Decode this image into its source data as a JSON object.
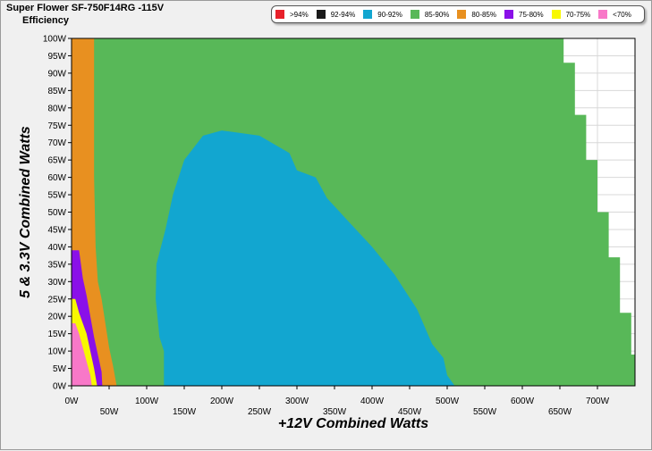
{
  "header": {
    "title": "Super Flower SF-750F14RG -115V",
    "subtitle": "Efficiency"
  },
  "legend": [
    {
      "label": ">94%",
      "color": "#e8202a"
    },
    {
      "label": "92-94%",
      "color": "#1a1a1a"
    },
    {
      "label": "90-92%",
      "color": "#12a6d0"
    },
    {
      "label": "85-90%",
      "color": "#58b858"
    },
    {
      "label": "80-85%",
      "color": "#e89020"
    },
    {
      "label": "75-80%",
      "color": "#8a10e8"
    },
    {
      "label": "70-75%",
      "color": "#f8f800"
    },
    {
      "label": "<70%",
      "color": "#f878c8"
    }
  ],
  "chart_data": {
    "type": "heatmap",
    "title": "Super Flower SF-750F14RG -115V",
    "subtitle": "Efficiency",
    "xlabel": "+12V Combined Watts",
    "ylabel": "5 & 3.3V Combined Watts",
    "xlim": [
      0,
      750
    ],
    "ylim": [
      0,
      100
    ],
    "x_ticks": [
      "0W",
      "50W",
      "100W",
      "150W",
      "200W",
      "250W",
      "300W",
      "350W",
      "400W",
      "450W",
      "500W",
      "550W",
      "600W",
      "650W",
      "700W"
    ],
    "y_ticks": [
      "0W",
      "5W",
      "10W",
      "15W",
      "20W",
      "25W",
      "30W",
      "35W",
      "40W",
      "45W",
      "50W",
      "55W",
      "60W",
      "65W",
      "70W",
      "75W",
      "80W",
      "85W",
      "90W",
      "95W",
      "100W"
    ],
    "efficiency_bands": [
      ">94%",
      "92-94%",
      "90-92%",
      "85-90%",
      "80-85%",
      "75-80%",
      "70-75%",
      "<70%"
    ],
    "grid": true,
    "regions": {
      "max_load_boundary": [
        [
          0,
          100
        ],
        [
          655,
          100
        ],
        [
          655,
          93
        ],
        [
          670,
          93
        ],
        [
          670,
          78
        ],
        [
          685,
          78
        ],
        [
          685,
          65
        ],
        [
          700,
          65
        ],
        [
          700,
          50
        ],
        [
          715,
          50
        ],
        [
          715,
          37
        ],
        [
          730,
          37
        ],
        [
          730,
          21
        ],
        [
          745,
          21
        ],
        [
          745,
          9
        ],
        [
          750,
          9
        ],
        [
          750,
          0
        ]
      ],
      "below_70_boundary": [
        [
          0,
          18
        ],
        [
          5,
          18
        ],
        [
          10,
          15
        ],
        [
          15,
          11
        ],
        [
          20,
          7
        ],
        [
          25,
          3
        ],
        [
          27,
          0
        ]
      ],
      "70_75_boundary": [
        [
          0,
          25
        ],
        [
          5,
          25
        ],
        [
          10,
          21
        ],
        [
          15,
          18
        ],
        [
          20,
          15
        ],
        [
          25,
          10
        ],
        [
          30,
          5
        ],
        [
          34,
          0
        ]
      ],
      "75_80_boundary": [
        [
          0,
          39
        ],
        [
          10,
          39
        ],
        [
          15,
          31
        ],
        [
          20,
          26
        ],
        [
          25,
          20
        ],
        [
          30,
          14
        ],
        [
          35,
          9
        ],
        [
          40,
          4
        ],
        [
          41,
          0
        ]
      ],
      "80_85_boundary": [
        [
          0,
          100
        ],
        [
          30,
          100
        ],
        [
          30,
          60
        ],
        [
          32,
          40
        ],
        [
          35,
          30
        ],
        [
          40,
          25
        ],
        [
          45,
          18
        ],
        [
          50,
          11
        ],
        [
          55,
          6
        ],
        [
          60,
          0
        ]
      ],
      "90_92_boundary": [
        [
          123,
          0
        ],
        [
          123,
          10
        ],
        [
          117,
          14
        ],
        [
          112,
          25
        ],
        [
          113,
          35
        ],
        [
          125,
          45
        ],
        [
          135,
          55
        ],
        [
          150,
          65
        ],
        [
          175,
          72
        ],
        [
          200,
          73.5
        ],
        [
          250,
          72
        ],
        [
          290,
          67
        ],
        [
          300,
          62
        ],
        [
          325,
          60
        ],
        [
          340,
          54
        ],
        [
          370,
          47
        ],
        [
          400,
          40
        ],
        [
          430,
          32
        ],
        [
          460,
          22
        ],
        [
          480,
          12
        ],
        [
          495,
          8
        ],
        [
          500,
          3
        ],
        [
          510,
          0
        ]
      ]
    }
  }
}
